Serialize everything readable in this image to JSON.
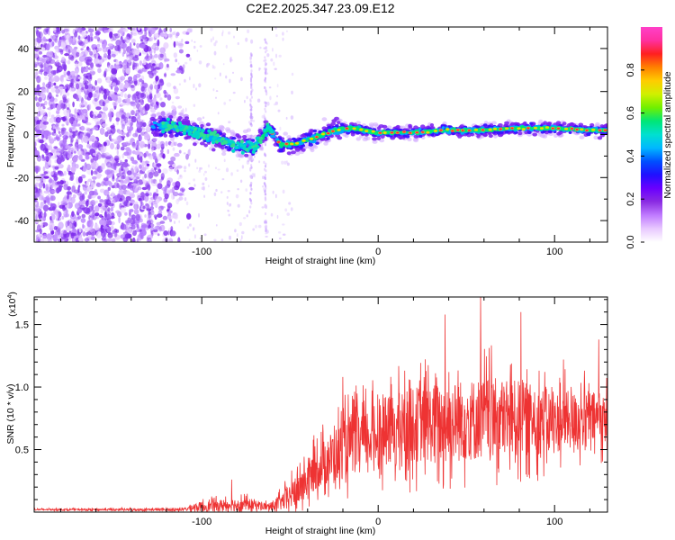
{
  "page_title": "C2E2.2025.347.23.09.E12",
  "chart_data": [
    {
      "type": "heatmap",
      "title": "C2E2.2025.347.23.09.E12",
      "xlabel": "Height of straight line (km)",
      "ylabel": "Frequency (Hz)",
      "xlim": [
        -195,
        130
      ],
      "ylim": [
        -50,
        50
      ],
      "xticks": [
        -100,
        0,
        100
      ],
      "xtick_labels": [
        "-100",
        "0",
        "100"
      ],
      "yticks": [
        -40,
        -20,
        0,
        20,
        40
      ],
      "ytick_labels": [
        "-40",
        "-20",
        "0",
        "20",
        "40"
      ],
      "colorbar": {
        "label": "Normalized spectral amplitude",
        "range": [
          0,
          1
        ],
        "ticks": [
          0.0,
          0.2,
          0.4,
          0.6,
          0.8
        ],
        "tick_labels": [
          "0.0",
          "0.2",
          "0.4",
          "0.6",
          "0.8"
        ],
        "colors": [
          "#ffffff",
          "#e8c8ff",
          "#c07bff",
          "#8a2be2",
          "#6a00ff",
          "#2010ff",
          "#0050ff",
          "#00b8ff",
          "#00e0d0",
          "#00e676",
          "#70f000",
          "#d0f000",
          "#ffcc00",
          "#ff8000",
          "#ff2020",
          "#ff30a0",
          "#ff40c8"
        ]
      },
      "ridge": {
        "x": [
          -125,
          -110,
          -100,
          -90,
          -80,
          -70,
          -62,
          -55,
          -45,
          -35,
          -25,
          -15,
          0,
          20,
          40,
          60,
          80,
          100,
          120,
          130
        ],
        "frequency": [
          4,
          3,
          0,
          -2,
          -5,
          -6,
          3,
          -5,
          -4,
          -1,
          2,
          3,
          1,
          1,
          2,
          2,
          3,
          3,
          2,
          2
        ]
      },
      "noise_region_x": [
        -195,
        -115
      ]
    },
    {
      "type": "line",
      "title": "",
      "xlabel": "Height of straight line (km)",
      "ylabel": "SNR (10 * v/v)",
      "y_scale_label": "(x10",
      "y_scale_exp": "4",
      "xlim": [
        -195,
        130
      ],
      "ylim": [
        0,
        1.72
      ],
      "xticks": [
        -100,
        0,
        100
      ],
      "xtick_labels": [
        "-100",
        "0",
        "100"
      ],
      "yticks": [
        0.5,
        1.0,
        1.5
      ],
      "ytick_labels": [
        "0.5",
        "1.0",
        "1.5"
      ],
      "color": "#ee3333",
      "envelope": {
        "x": [
          -195,
          -110,
          -105,
          -80,
          -70,
          -62,
          -55,
          -45,
          -35,
          -25,
          -15,
          -5,
          5,
          20,
          40,
          60,
          80,
          100,
          120,
          130
        ],
        "baseline": [
          0.02,
          0.02,
          0.04,
          0.06,
          0.06,
          0.04,
          0.08,
          0.18,
          0.35,
          0.45,
          0.55,
          0.6,
          0.65,
          0.7,
          0.72,
          0.75,
          0.75,
          0.72,
          0.75,
          0.75
        ],
        "amplitude": [
          0.01,
          0.02,
          0.06,
          0.1,
          0.08,
          0.05,
          0.12,
          0.25,
          0.3,
          0.4,
          0.45,
          0.45,
          0.5,
          0.55,
          0.6,
          0.6,
          0.55,
          0.45,
          0.4,
          0.35
        ]
      },
      "peaks": [
        {
          "x": -83,
          "y": 0.26
        },
        {
          "x": -20,
          "y": 1.08
        },
        {
          "x": 38,
          "y": 1.58
        },
        {
          "x": 58,
          "y": 1.72
        },
        {
          "x": 81,
          "y": 1.6
        },
        {
          "x": 105,
          "y": 1.22
        },
        {
          "x": 125,
          "y": 1.38
        }
      ]
    }
  ]
}
